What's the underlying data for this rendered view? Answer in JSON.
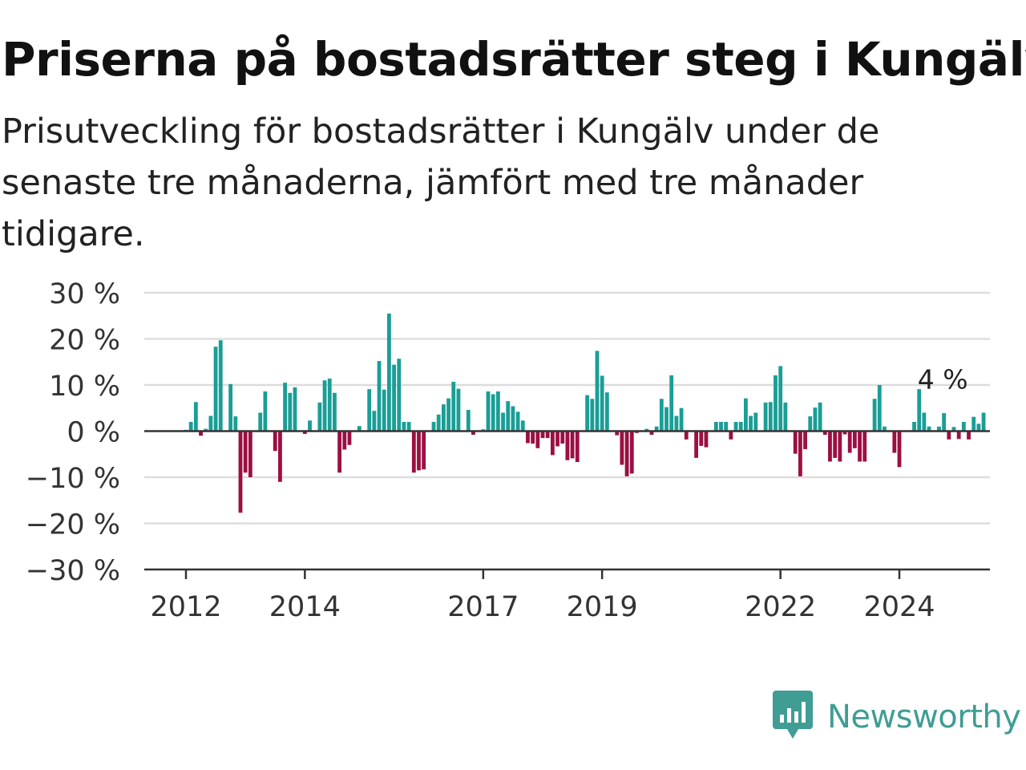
{
  "title": "Priserna på bostadsrätter steg i Kungälv",
  "subtitle": "Prisutveckling för bostadsrätter i Kungälv under de senaste tre månaderna, jämfört med tre månader tidigare.",
  "brand": {
    "name": "Newsworthy",
    "icon": "newsworthy-logo-icon",
    "color": "#3f9d94"
  },
  "colors": {
    "positive": "#1a9e96",
    "negative": "#9c0f43",
    "grid": "#dddddd",
    "axis": "#333333",
    "label": "#333333"
  },
  "chart_data": {
    "type": "bar",
    "x_start": "2011-05",
    "x_step": "month",
    "ylim": [
      -30,
      30
    ],
    "yticks": [
      30,
      20,
      10,
      0,
      -10,
      -20,
      -30
    ],
    "ytick_labels": [
      "30 %",
      "20 %",
      "10 %",
      "0 %",
      "−10 %",
      "−20 %",
      "−30 %"
    ],
    "xticks": [
      {
        "label": "2012",
        "date": "2012-01"
      },
      {
        "label": "2014",
        "date": "2014-01"
      },
      {
        "label": "2017",
        "date": "2017-01"
      },
      {
        "label": "2019",
        "date": "2019-01"
      },
      {
        "label": "2022",
        "date": "2022-01"
      },
      {
        "label": "2024",
        "date": "2024-01"
      }
    ],
    "annotation": {
      "text": "4 %",
      "date": "2024-10",
      "value": 4
    },
    "values": [
      0,
      0,
      0,
      0,
      0,
      0,
      0,
      0,
      0.3,
      2,
      6.3,
      -1,
      0.5,
      3.3,
      18.3,
      19.7,
      0,
      10.2,
      3.2,
      -17.7,
      -9,
      -10,
      0,
      4,
      8.6,
      0,
      -4.3,
      -11,
      10.5,
      8.3,
      9.5,
      0,
      -0.6,
      2.3,
      0,
      6.2,
      11,
      11.4,
      8.3,
      -9,
      -4,
      -3,
      0,
      1.1,
      0,
      9.1,
      4.4,
      15.2,
      9,
      25.5,
      14.4,
      15.7,
      2,
      2,
      -9,
      -8.5,
      -8.3,
      0,
      2,
      3.6,
      5.8,
      7.1,
      10.7,
      9.2,
      0,
      4.6,
      -0.8,
      0,
      0.4,
      8.6,
      8,
      8.6,
      4,
      6.5,
      5.4,
      4.2,
      2.3,
      -2.6,
      -2.7,
      -3.7,
      -1.5,
      -1.5,
      -5.2,
      -3.3,
      -2.7,
      -6.3,
      -5.9,
      -6.7,
      0,
      7.8,
      7,
      17.4,
      12,
      8.4,
      0,
      -0.9,
      -7.3,
      -9.8,
      -9.2,
      -0.4,
      0,
      0.5,
      -0.8,
      1,
      7,
      5.2,
      12.1,
      3.3,
      5,
      -1.8,
      0,
      -5.8,
      -3.2,
      -3.5,
      0,
      2,
      2,
      2,
      -1.8,
      2,
      2,
      7.1,
      3.3,
      4,
      0,
      6.2,
      6.3,
      12.1,
      14.1,
      6.2,
      0,
      -4.9,
      -9.8,
      -3.9,
      3.2,
      5.1,
      6.2,
      -0.8,
      -6.6,
      -5.8,
      -6.6,
      -0.7,
      -4.7,
      -3.7,
      -6.6,
      -6.6,
      0,
      7,
      10,
      1,
      0,
      -4.7,
      -7.8,
      0,
      0,
      2,
      9.1,
      4,
      1,
      0,
      1,
      3.9,
      -1.8,
      0.9,
      -1.7,
      2,
      -1.8,
      3.1,
      1.6,
      4
    ]
  }
}
